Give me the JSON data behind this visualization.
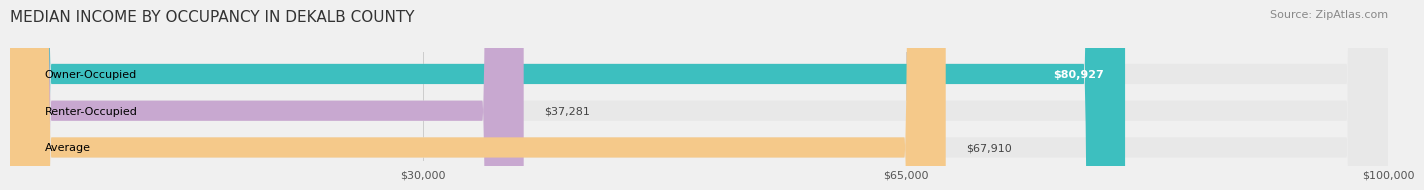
{
  "title": "MEDIAN INCOME BY OCCUPANCY IN DEKALB COUNTY",
  "source": "Source: ZipAtlas.com",
  "categories": [
    "Owner-Occupied",
    "Renter-Occupied",
    "Average"
  ],
  "values": [
    80927,
    37281,
    67910
  ],
  "bar_colors": [
    "#3dbfbf",
    "#c8a8d0",
    "#f5c98a"
  ],
  "bar_labels": [
    "$80,927",
    "$37,281",
    "$67,910"
  ],
  "label_inside": [
    true,
    false,
    false
  ],
  "xlim": [
    0,
    100000
  ],
  "xticks": [
    30000,
    65000,
    100000
  ],
  "xticklabels": [
    "$30,000",
    "$65,000",
    "$100,000"
  ],
  "background_color": "#f0f0f0",
  "bar_bg_color": "#e8e8e8",
  "title_fontsize": 11,
  "source_fontsize": 8,
  "label_fontsize": 8,
  "category_fontsize": 8,
  "tick_fontsize": 8
}
